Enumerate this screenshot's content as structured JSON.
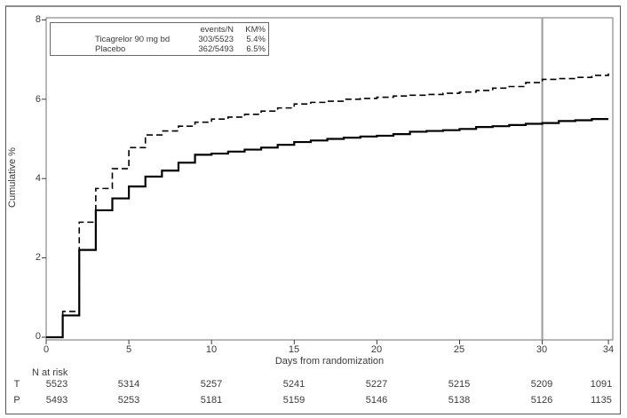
{
  "figure": {
    "y_axis_label": "Cumulative %",
    "x_axis_label": "Days from randomization"
  },
  "legend": {
    "col_events": "events/N",
    "col_km": "KM%",
    "rows": [
      {
        "label": "Ticagrelor 90 mg bd",
        "events": "303/5523",
        "km": "5.4%"
      },
      {
        "label": "Placebo",
        "events": "362/5493",
        "km": "6.5%"
      }
    ]
  },
  "chart_data": {
    "type": "line",
    "subtype": "kaplan-meier-step",
    "title": "",
    "xlabel": "Days from randomization",
    "ylabel": "Cumulative %",
    "xlim": [
      0,
      34
    ],
    "ylim": [
      0,
      8
    ],
    "xticks": [
      0,
      5,
      10,
      15,
      20,
      25,
      30,
      34
    ],
    "yticks": [
      0,
      2,
      4,
      6,
      8
    ],
    "grid": false,
    "reference_line_x": 30,
    "x_days": [
      0,
      1,
      2,
      3,
      4,
      5,
      6,
      7,
      8,
      9,
      10,
      11,
      12,
      13,
      14,
      15,
      16,
      17,
      18,
      19,
      20,
      21,
      22,
      23,
      24,
      25,
      26,
      27,
      28,
      29,
      30,
      31,
      32,
      33,
      34
    ],
    "series": [
      {
        "name": "Ticagrelor 90 mg bd",
        "line_style": "solid",
        "color": "#000000",
        "events_n": "303/5523",
        "km_pct": 5.4,
        "values": [
          0,
          0.55,
          2.2,
          3.2,
          3.5,
          3.8,
          4.05,
          4.2,
          4.4,
          4.6,
          4.63,
          4.68,
          4.73,
          4.78,
          4.85,
          4.92,
          4.96,
          5.0,
          5.03,
          5.06,
          5.08,
          5.12,
          5.18,
          5.2,
          5.22,
          5.25,
          5.3,
          5.32,
          5.35,
          5.38,
          5.4,
          5.45,
          5.47,
          5.5,
          5.5
        ]
      },
      {
        "name": "Placebo",
        "line_style": "dashed",
        "color": "#000000",
        "events_n": "362/5493",
        "km_pct": 6.5,
        "values": [
          0,
          0.65,
          2.9,
          3.75,
          4.25,
          4.78,
          5.1,
          5.2,
          5.32,
          5.42,
          5.5,
          5.55,
          5.62,
          5.7,
          5.78,
          5.88,
          5.92,
          5.95,
          6.0,
          6.02,
          6.05,
          6.08,
          6.1,
          6.12,
          6.15,
          6.18,
          6.22,
          6.28,
          6.32,
          6.42,
          6.5,
          6.52,
          6.55,
          6.6,
          6.65
        ]
      }
    ],
    "risk_table": {
      "label": "N at risk",
      "days": [
        0,
        5,
        10,
        15,
        20,
        25,
        30,
        34
      ],
      "rows": [
        {
          "label": "T",
          "values": [
            5523,
            5314,
            5257,
            5241,
            5227,
            5215,
            5209,
            1091
          ]
        },
        {
          "label": "P",
          "values": [
            5493,
            5253,
            5181,
            5159,
            5146,
            5138,
            5126,
            1135
          ]
        }
      ]
    },
    "colors": {
      "curves": "#000000",
      "reference_line": "#9b9b9b",
      "frame": "#707070"
    }
  }
}
